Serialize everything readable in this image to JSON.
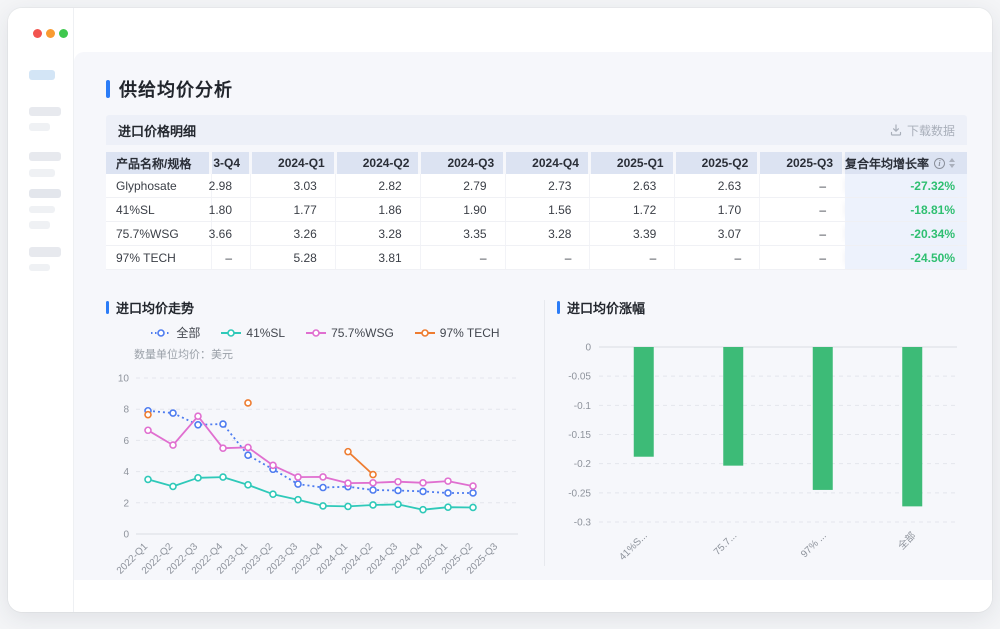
{
  "page_title": "供给均价分析",
  "colors": {
    "accent_blue": "#2b7cf7",
    "cagr_green": "#2fbf71",
    "bar_green": "#3dbb77",
    "traffic_red": "#f2544f",
    "traffic_yellow": "#f99b31",
    "traffic_green": "#3fc84e"
  },
  "table": {
    "section_title": "进口价格明细",
    "download_button": "下载数据",
    "columns": {
      "name": "产品名称/规格",
      "quarters": [
        "3-Q4",
        "2024-Q1",
        "2024-Q2",
        "2024-Q3",
        "2024-Q4",
        "2025-Q1",
        "2025-Q2",
        "2025-Q3"
      ],
      "cagr": "复合年均增长率"
    },
    "rows": [
      {
        "name": "Glyphosate",
        "values": [
          "2.98",
          "3.03",
          "2.82",
          "2.79",
          "2.73",
          "2.63",
          "2.63",
          "–"
        ],
        "cagr": "-27.32%"
      },
      {
        "name": "41%SL",
        "values": [
          "1.80",
          "1.77",
          "1.86",
          "1.90",
          "1.56",
          "1.72",
          "1.70",
          "–"
        ],
        "cagr": "-18.81%"
      },
      {
        "name": "75.7%WSG",
        "values": [
          "3.66",
          "3.26",
          "3.28",
          "3.35",
          "3.28",
          "3.39",
          "3.07",
          "–"
        ],
        "cagr": "-20.34%"
      },
      {
        "name": "97% TECH",
        "values": [
          "–",
          "5.28",
          "3.81",
          "–",
          "–",
          "–",
          "–",
          "–"
        ],
        "cagr": "-24.50%"
      }
    ]
  },
  "chart_data": [
    {
      "type": "line",
      "title": "进口均价走势",
      "subtitle": "数量单位均价：美元",
      "legend_position": "top",
      "grid": true,
      "ylim": [
        0,
        10
      ],
      "yticks": [
        0,
        2,
        4,
        6,
        8,
        10
      ],
      "categories": [
        "2022-Q1",
        "2022-Q2",
        "2022-Q3",
        "2022-Q4",
        "2023-Q1",
        "2023-Q2",
        "2023-Q3",
        "2023-Q4",
        "2024-Q1",
        "2024-Q2",
        "2024-Q3",
        "2024-Q4",
        "2025-Q1",
        "2025-Q2",
        "2025-Q3"
      ],
      "series": [
        {
          "name": "全部",
          "color": "#4e7cf0",
          "line_style": "dotted",
          "values": [
            7.9,
            7.75,
            7.0,
            7.05,
            5.05,
            4.15,
            3.2,
            2.98,
            3.03,
            2.82,
            2.79,
            2.73,
            2.63,
            2.63,
            null
          ]
        },
        {
          "name": "41%SL",
          "color": "#2fc9b9",
          "line_style": "solid",
          "values": [
            3.5,
            3.05,
            3.6,
            3.65,
            3.15,
            2.55,
            2.2,
            1.8,
            1.77,
            1.86,
            1.9,
            1.56,
            1.72,
            1.7,
            null
          ]
        },
        {
          "name": "75.7%WSG",
          "color": "#e06fd0",
          "line_style": "solid",
          "values": [
            6.65,
            5.7,
            7.55,
            5.5,
            5.55,
            4.4,
            3.65,
            3.66,
            3.26,
            3.28,
            3.35,
            3.28,
            3.39,
            3.07,
            null
          ]
        },
        {
          "name": "97% TECH",
          "color": "#ee7c30",
          "line_style": "solid",
          "values": [
            7.65,
            null,
            null,
            null,
            8.4,
            null,
            null,
            null,
            5.28,
            3.81,
            null,
            null,
            null,
            null,
            null
          ]
        }
      ]
    },
    {
      "type": "bar",
      "title": "进口均价涨幅",
      "categories": [
        "41%S...",
        "75.7...",
        "97% ...",
        "全部"
      ],
      "values": [
        -0.1881,
        -0.2034,
        -0.245,
        -0.2732
      ],
      "bar_color": "#3dbb77",
      "ylim": [
        -0.3,
        0
      ],
      "ytick_labels": [
        "0",
        "-0.05",
        "-0.1",
        "-0.15",
        "-0.2",
        "-0.25",
        "-0.3"
      ],
      "grid": true,
      "legend_position": "none"
    }
  ]
}
